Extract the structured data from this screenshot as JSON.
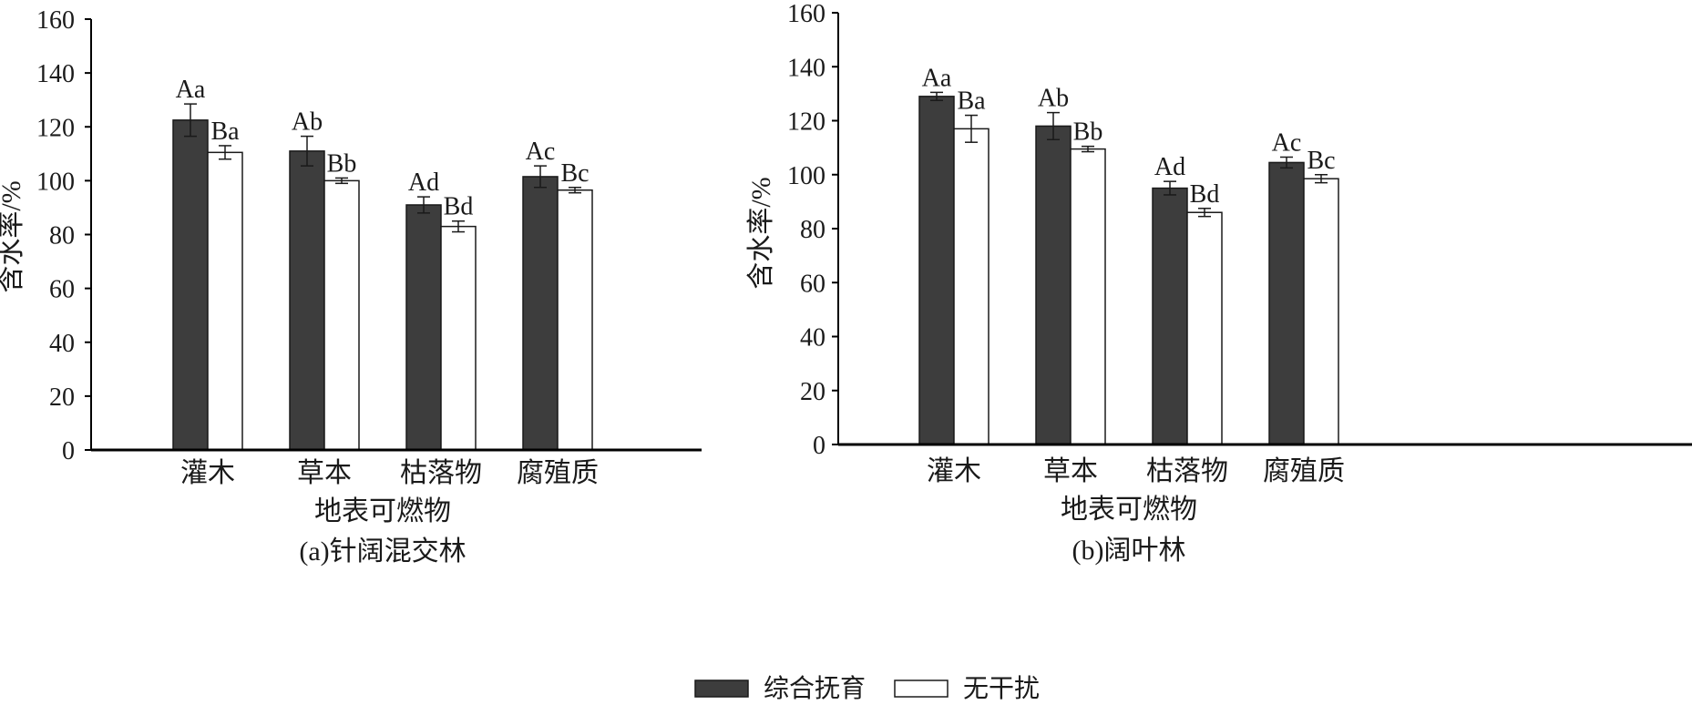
{
  "chart_data": [
    {
      "type": "bar",
      "caption": "(a)针阔混交林",
      "xlabel": "地表可燃物",
      "ylabel": "含水率/%",
      "ylim": [
        0,
        160
      ],
      "yticks": [
        0,
        20,
        40,
        60,
        80,
        100,
        120,
        140,
        160
      ],
      "categories": [
        "灌木",
        "草本",
        "枯落物",
        "腐殖质"
      ],
      "series": [
        {
          "name": "综合抚育",
          "color": "#3d3d3d",
          "values": [
            122.5,
            111,
            91,
            101.5
          ],
          "errors": [
            6,
            5.5,
            3,
            4
          ],
          "labels": [
            "Aa",
            "Ab",
            "Ad",
            "Ac"
          ]
        },
        {
          "name": "无干扰",
          "color": "#ffffff",
          "values": [
            110.5,
            100,
            83,
            96.5
          ],
          "errors": [
            2.5,
            1,
            2,
            1
          ],
          "labels": [
            "Ba",
            "Bb",
            "Bd",
            "Bc"
          ]
        }
      ]
    },
    {
      "type": "bar",
      "caption": "(b)阔叶林",
      "xlabel": "地表可燃物",
      "ylabel": "含水率/%",
      "ylim": [
        0,
        160
      ],
      "yticks": [
        0,
        20,
        40,
        60,
        80,
        100,
        120,
        140,
        160
      ],
      "categories": [
        "灌木",
        "草本",
        "枯落物",
        "腐殖质"
      ],
      "series": [
        {
          "name": "综合抚育",
          "color": "#3d3d3d",
          "values": [
            129,
            118,
            95,
            104.5
          ],
          "errors": [
            1.5,
            5,
            2.5,
            2
          ],
          "labels": [
            "Aa",
            "Ab",
            "Ad",
            "Ac"
          ]
        },
        {
          "name": "无干扰",
          "color": "#ffffff",
          "values": [
            117,
            109.5,
            86,
            98.5
          ],
          "errors": [
            5,
            1,
            1.5,
            1.5
          ],
          "labels": [
            "Ba",
            "Bb",
            "Bd",
            "Bc"
          ]
        }
      ]
    }
  ],
  "legend": {
    "items": [
      {
        "label": "综合抚育",
        "color": "#3d3d3d"
      },
      {
        "label": "无干扰",
        "color": "#ffffff"
      }
    ]
  }
}
